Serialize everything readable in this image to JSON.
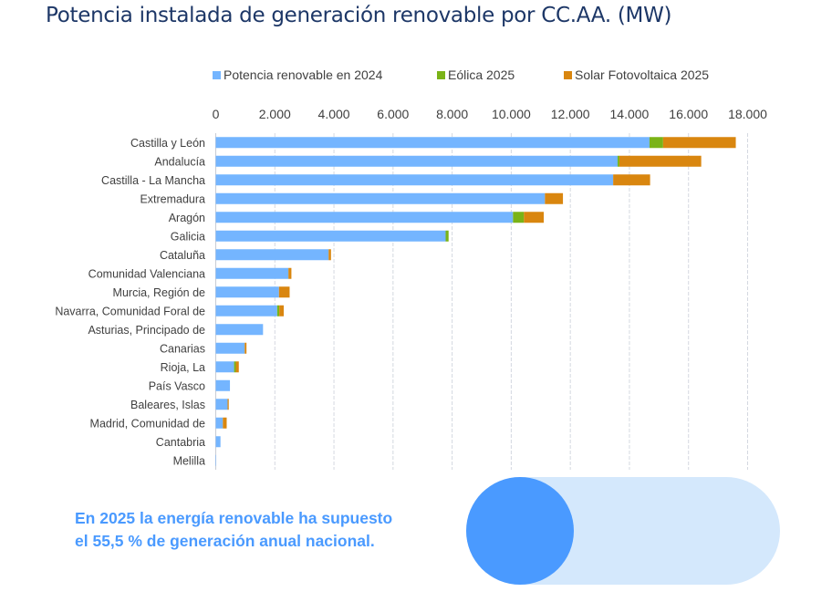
{
  "title": "Potencia instalada de generación renovable por CC.AA. (MW)",
  "callout": {
    "line1": "En 2025 la energía renovable ha supuesto",
    "line2": "el 55,5 % de generación anual nacional.",
    "renewable_share_percent": 55.5
  },
  "colors": {
    "title": "#1d3767",
    "potencia_2024": "#74b5ff",
    "eolica_2025": "#7ab317",
    "solar_2025": "#d9860f",
    "callout": "#4a9aff",
    "pill_bg": "#d4e8fc",
    "pill_circle": "#4a9aff"
  },
  "chart_data": {
    "type": "bar",
    "orientation": "horizontal",
    "stacked": true,
    "title": "Potencia instalada de generación renovable por CC.AA. (MW)",
    "xlabel": "",
    "ylabel": "",
    "xlim": [
      0,
      18000
    ],
    "x_ticks": [
      0,
      2000,
      4000,
      6000,
      8000,
      10000,
      12000,
      14000,
      16000,
      18000
    ],
    "x_tick_labels": [
      "0",
      "2.000",
      "4.000",
      "6.000",
      "8.000",
      "10.000",
      "12.000",
      "14.000",
      "16.000",
      "18.000"
    ],
    "x_axis_position": "top",
    "grid": true,
    "legend_position": "top",
    "categories": [
      "Castilla y León",
      "Andalucía",
      "Castilla - La Mancha",
      "Extremadura",
      "Aragón",
      "Galicia",
      "Cataluña",
      "Comunidad Valenciana",
      "Murcia, Región de",
      "Navarra, Comunidad Foral de",
      "Asturias, Principado de",
      "Canarias",
      "Rioja, La",
      "País Vasco",
      "Baleares, Islas",
      "Madrid, Comunidad de",
      "Cantabria",
      "Melilla"
    ],
    "series": [
      {
        "name": "Potencia renovable en 2024",
        "color": "#74b5ff",
        "values": [
          14680,
          13600,
          13450,
          11140,
          10060,
          7780,
          3820,
          2460,
          2140,
          2080,
          1600,
          980,
          620,
          480,
          400,
          240,
          160,
          5
        ]
      },
      {
        "name": "Eólica 2025",
        "color": "#7ab317",
        "values": [
          460,
          60,
          0,
          0,
          370,
          100,
          0,
          0,
          0,
          70,
          0,
          0,
          60,
          0,
          0,
          0,
          0,
          0
        ]
      },
      {
        "name": "Solar Fotovoltaica 2025",
        "color": "#d9860f",
        "values": [
          2460,
          2770,
          1250,
          610,
          670,
          0,
          80,
          100,
          360,
          150,
          0,
          60,
          100,
          0,
          40,
          130,
          0,
          0
        ]
      }
    ]
  }
}
